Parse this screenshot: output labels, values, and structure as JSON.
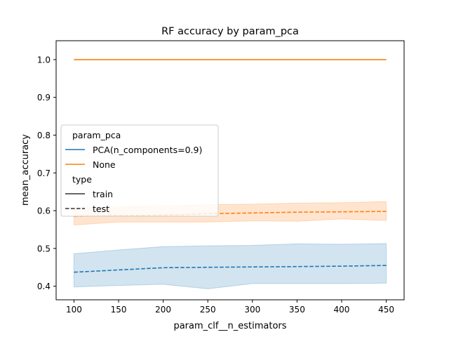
{
  "chart_data": {
    "type": "line",
    "title": "RF accuracy by param_pca",
    "xlabel": "param_clf__n_estimators",
    "ylabel": "mean_accuracy",
    "xlim": [
      80,
      470
    ],
    "ylim": [
      0.364,
      1.05
    ],
    "x_ticks": [
      100,
      150,
      200,
      250,
      300,
      350,
      400,
      450
    ],
    "y_ticks": [
      0.4,
      0.5,
      0.6,
      0.7,
      0.8,
      0.9,
      1.0
    ],
    "grid": false,
    "x": [
      100,
      150,
      200,
      250,
      300,
      350,
      400,
      450
    ],
    "series": [
      {
        "name": "PCA(n_components=0.9)",
        "param_pca": "PCA(n_components=0.9)",
        "type": "test",
        "color": "#1f77b4",
        "dash": "dashed",
        "values": [
          0.437,
          0.443,
          0.449,
          0.45,
          0.451,
          0.452,
          0.453,
          0.455
        ],
        "ci_low": [
          0.398,
          0.402,
          0.405,
          0.393,
          0.407,
          0.407,
          0.407,
          0.408
        ],
        "ci_high": [
          0.486,
          0.496,
          0.505,
          0.507,
          0.508,
          0.512,
          0.511,
          0.513
        ]
      },
      {
        "name": "None",
        "param_pca": "None",
        "type": "train",
        "color": "#ff7f0e",
        "dash": "solid",
        "values": [
          1.0,
          1.0,
          1.0,
          1.0,
          1.0,
          1.0,
          1.0,
          1.0
        ],
        "ci_low": [
          1.0,
          1.0,
          1.0,
          1.0,
          1.0,
          1.0,
          1.0,
          1.0
        ],
        "ci_high": [
          1.0,
          1.0,
          1.0,
          1.0,
          1.0,
          1.0,
          1.0,
          1.0
        ]
      },
      {
        "name": "None",
        "param_pca": "None",
        "type": "test",
        "color": "#ff7f0e",
        "dash": "dashed",
        "values": [
          0.585,
          0.587,
          0.588,
          0.592,
          0.594,
          0.596,
          0.597,
          0.598
        ],
        "ci_low": [
          0.562,
          0.57,
          0.57,
          0.57,
          0.573,
          0.572,
          0.578,
          0.574
        ],
        "ci_high": [
          0.607,
          0.61,
          0.612,
          0.616,
          0.617,
          0.62,
          0.621,
          0.624
        ]
      }
    ],
    "legend": {
      "placement": "center-left",
      "groups": [
        {
          "title": "param_pca",
          "entries": [
            {
              "label": "PCA(n_components=0.9)",
              "color": "#1f77b4",
              "dash": "solid"
            },
            {
              "label": "None",
              "color": "#ff7f0e",
              "dash": "solid"
            }
          ]
        },
        {
          "title": "type",
          "entries": [
            {
              "label": "train",
              "color": "#333333",
              "dash": "solid"
            },
            {
              "label": "test",
              "color": "#333333",
              "dash": "dashed"
            }
          ]
        }
      ]
    }
  }
}
